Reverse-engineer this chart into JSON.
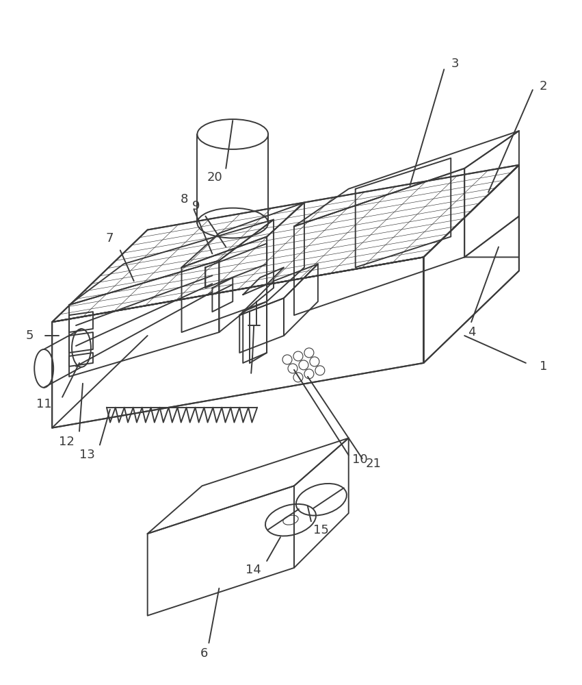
{
  "bg_color": "#ffffff",
  "line_color": "#3a3a3a",
  "lw": 1.4,
  "fig_w": 8.51,
  "fig_h": 10.0,
  "dpi": 100,
  "label_fs": 13
}
